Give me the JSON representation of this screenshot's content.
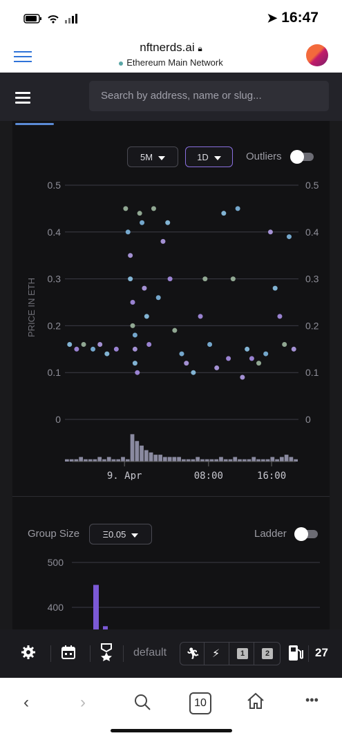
{
  "status": {
    "time": "16:47"
  },
  "browser": {
    "url": "nftnerds.ai",
    "network": "Ethereum Main Network"
  },
  "appnav": {
    "search_placeholder": "Search by address, name or slug..."
  },
  "controls": {
    "range_label": "5M",
    "interval_label": "1D",
    "outliers_label": "Outliers",
    "outliers_on": false
  },
  "chart_data": {
    "type": "scatter",
    "ylabel": "PRICE IN ETH",
    "ylim": [
      0,
      0.5
    ],
    "yticks": [
      "0.5",
      "0.4",
      "0.3",
      "0.2",
      "0.1",
      "0"
    ],
    "xticks": [
      "9. Apr",
      "08:00",
      "16:00"
    ],
    "series": [
      {
        "values_approx": "dense cluster of sales between 0.08 and 0.45 ETH, concentrated around 0.1–0.2",
        "points": [
          [
            0.02,
            0.16
          ],
          [
            0.05,
            0.15
          ],
          [
            0.08,
            0.16
          ],
          [
            0.12,
            0.15
          ],
          [
            0.15,
            0.16
          ],
          [
            0.18,
            0.14
          ],
          [
            0.22,
            0.15
          ],
          [
            0.26,
            0.45
          ],
          [
            0.27,
            0.4
          ],
          [
            0.28,
            0.35
          ],
          [
            0.28,
            0.3
          ],
          [
            0.29,
            0.25
          ],
          [
            0.29,
            0.2
          ],
          [
            0.3,
            0.18
          ],
          [
            0.3,
            0.15
          ],
          [
            0.3,
            0.12
          ],
          [
            0.31,
            0.1
          ],
          [
            0.32,
            0.44
          ],
          [
            0.33,
            0.42
          ],
          [
            0.34,
            0.28
          ],
          [
            0.35,
            0.22
          ],
          [
            0.36,
            0.16
          ],
          [
            0.38,
            0.45
          ],
          [
            0.4,
            0.26
          ],
          [
            0.42,
            0.38
          ],
          [
            0.44,
            0.42
          ],
          [
            0.45,
            0.3
          ],
          [
            0.47,
            0.19
          ],
          [
            0.5,
            0.14
          ],
          [
            0.52,
            0.12
          ],
          [
            0.55,
            0.1
          ],
          [
            0.58,
            0.22
          ],
          [
            0.6,
            0.3
          ],
          [
            0.62,
            0.16
          ],
          [
            0.65,
            0.11
          ],
          [
            0.68,
            0.44
          ],
          [
            0.7,
            0.13
          ],
          [
            0.72,
            0.3
          ],
          [
            0.74,
            0.45
          ],
          [
            0.76,
            0.09
          ],
          [
            0.78,
            0.15
          ],
          [
            0.8,
            0.13
          ],
          [
            0.83,
            0.12
          ],
          [
            0.86,
            0.14
          ],
          [
            0.88,
            0.4
          ],
          [
            0.9,
            0.28
          ],
          [
            0.92,
            0.22
          ],
          [
            0.94,
            0.16
          ],
          [
            0.96,
            0.39
          ],
          [
            0.98,
            0.15
          ]
        ]
      }
    ],
    "volume": [
      1,
      1,
      1,
      2,
      1,
      1,
      1,
      2,
      1,
      2,
      1,
      1,
      2,
      1,
      12,
      9,
      7,
      5,
      4,
      3,
      3,
      2,
      2,
      2,
      2,
      1,
      1,
      1,
      2,
      1,
      1,
      1,
      1,
      2,
      1,
      1,
      2,
      1,
      1,
      1,
      2,
      1,
      1,
      1,
      2,
      1,
      2,
      3,
      2,
      1
    ]
  },
  "groupsize": {
    "label": "Group Size",
    "value": "Ξ0.05",
    "ladder_label": "Ladder",
    "ladder_on": false
  },
  "histogram": {
    "yticks": [
      "500",
      "400"
    ],
    "bars": [
      450,
      358
    ]
  },
  "toolbar": {
    "default_label": "default",
    "count": "27",
    "slot_1": "1",
    "slot_2": "2"
  },
  "bottomnav": {
    "tabs_count": "10"
  }
}
